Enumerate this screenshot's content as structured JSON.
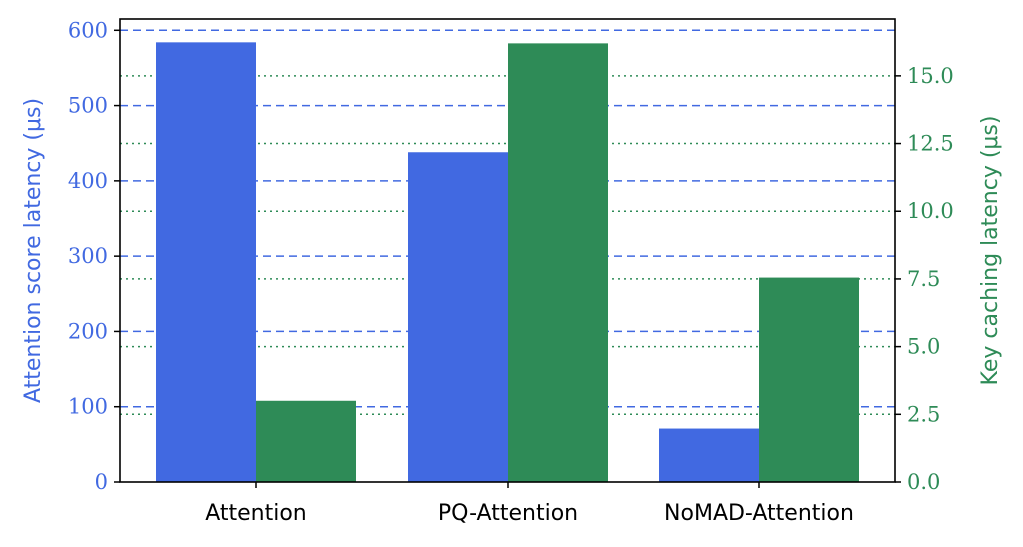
{
  "chart_data": {
    "type": "bar",
    "categories": [
      "Attention",
      "PQ-Attention",
      "NoMAD-Attention"
    ],
    "series": [
      {
        "values": [
          584,
          438,
          71
        ],
        "axis": "left",
        "color": "#4169e1"
      },
      {
        "values": [
          3.0,
          16.2,
          7.55
        ],
        "axis": "right",
        "color": "#2e8b57"
      }
    ],
    "left_axis": {
      "label": "Attention score latency (μs)",
      "ylim": [
        0,
        615
      ],
      "ticks": [
        0,
        100,
        200,
        300,
        400,
        500,
        600
      ],
      "tick_labels": [
        "0",
        "100",
        "200",
        "300",
        "400",
        "500",
        "600"
      ],
      "color": "#4169e1",
      "grid": "dashed"
    },
    "right_axis": {
      "label": "Key caching latency (μs)",
      "ylim": [
        0,
        17.1
      ],
      "ticks": [
        0,
        2.5,
        5,
        7.5,
        10,
        12.5,
        15
      ],
      "tick_labels": [
        "0.0",
        "2.5",
        "5.0",
        "7.5",
        "10.0",
        "12.5",
        "15.0"
      ],
      "color": "#2e8b57",
      "grid": "dotted"
    },
    "xlabel": "",
    "title": "",
    "legend": "none"
  }
}
